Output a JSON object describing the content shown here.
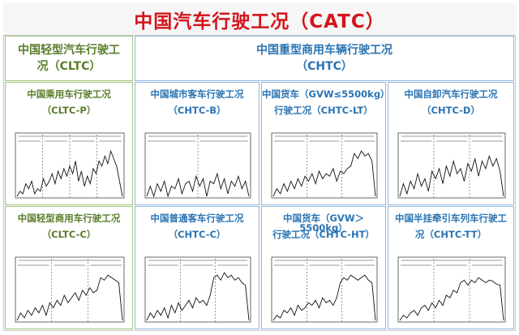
{
  "title": "中国汽车行驶工况（CATC）",
  "sections": {
    "light": {
      "line1": "中国轻型汽车行驶工",
      "line2": "况（CLTC）"
    },
    "heavy": {
      "line1": "中国重型商用车辆行驶工况",
      "line2": "（CHTC）"
    }
  },
  "colors": {
    "title_red": "#d3141c",
    "green": "#5a7d2b",
    "blue": "#2a74b3",
    "green_border": "#9fc47a",
    "blue_border": "#8fb7df"
  },
  "panels": [
    {
      "name": "cltc-p",
      "line1": "中国乘用车行驶工况",
      "line2": "（CLTC-P）",
      "theme": "green",
      "phases": 4,
      "speeds": [
        0,
        0.1,
        0.05,
        0.25,
        0.15,
        0.3,
        0.05,
        0.15,
        0.1,
        0.35,
        0.2,
        0.3,
        0.45,
        0.25,
        0.5,
        0.35,
        0.55,
        0.4,
        0.6,
        0.45,
        0.7,
        0.3,
        0.5,
        0.2,
        0.4,
        0.25,
        0.55,
        0.45,
        0.7,
        0.6,
        0.8,
        0.65,
        0.9,
        0.75,
        0.6,
        0.3,
        0
      ]
    },
    {
      "name": "chtc-b",
      "line1": "中国城市客车行驶工况",
      "line2": "（CHTC-B）",
      "theme": "blue",
      "phases": 2,
      "speeds": [
        0,
        0.2,
        0,
        0.25,
        0.1,
        0.3,
        0,
        0.2,
        0.15,
        0.35,
        0.05,
        0.25,
        0.3,
        0.1,
        0.4,
        0.2,
        0.35,
        0,
        0.3,
        0.25,
        0.45,
        0.15,
        0.35,
        0.05,
        0.3,
        0.2,
        0.4,
        0.15,
        0.3,
        0
      ]
    },
    {
      "name": "chtc-lt",
      "line1": "中国货车（GVW≤5500kg）",
      "line2": "行驶工况（CHTC-LT）",
      "theme": "blue",
      "phases": 3,
      "speeds": [
        0,
        0.15,
        0.05,
        0.25,
        0.1,
        0.3,
        0.15,
        0.35,
        0.2,
        0.4,
        0.3,
        0.45,
        0.25,
        0.5,
        0.35,
        0.45,
        0.4,
        0.55,
        0.3,
        0.5,
        0.45,
        0.55,
        0.6,
        0.85,
        0.75,
        0.9,
        0.8,
        0.85,
        0.7,
        0
      ]
    },
    {
      "name": "chtc-d",
      "line1": "中国自卸汽车行驶工况",
      "line2": "（CHTC-D）",
      "theme": "blue",
      "phases": 3,
      "speeds": [
        0,
        0.25,
        0.05,
        0.3,
        0.15,
        0.45,
        0.2,
        0.35,
        0.1,
        0.5,
        0.35,
        0.55,
        0.25,
        0.6,
        0.4,
        0.7,
        0.45,
        0.55,
        0.3,
        0.65,
        0.5,
        0.75,
        0.4,
        0.7,
        0.55,
        0.8,
        0.6,
        0.75,
        0.5,
        0
      ]
    },
    {
      "name": "cltc-c",
      "line1": "中国轻型商用车行驶工况",
      "line2": "（CLTC-C）",
      "theme": "green",
      "phases": 3,
      "speeds": [
        0,
        0.15,
        0.05,
        0.2,
        0.1,
        0.25,
        0.15,
        0.3,
        0.1,
        0.35,
        0.25,
        0.4,
        0.3,
        0.5,
        0.35,
        0.45,
        0.55,
        0.4,
        0.6,
        0.5,
        0.65,
        0.55,
        0.6,
        0.85,
        0.8,
        0.9,
        0.85,
        0.8,
        0.75,
        0
      ]
    },
    {
      "name": "chtc-c",
      "line1": "中国普通客车行驶工况",
      "line2": "（CHTC-C）",
      "theme": "blue",
      "phases": 3,
      "speeds": [
        0,
        0.15,
        0.05,
        0.2,
        0.1,
        0.25,
        0.05,
        0.3,
        0.15,
        0.35,
        0.2,
        0.3,
        0.4,
        0.25,
        0.45,
        0.35,
        0.4,
        0.3,
        0.5,
        0.85,
        0.9,
        0.8,
        0.95,
        0.85,
        0.9,
        0.8,
        0.85,
        0.75,
        0.7,
        0
      ]
    },
    {
      "name": "chtc-ht",
      "line1": "中国货车（GVW＞5500kg）",
      "line2": "行驶工况（CHTC-HT）",
      "theme": "blue",
      "phases": 3,
      "speeds": [
        0,
        0.1,
        0.05,
        0.2,
        0.15,
        0.25,
        0.1,
        0.3,
        0.2,
        0.25,
        0.35,
        0.3,
        0.4,
        0.25,
        0.45,
        0.35,
        0.4,
        0.3,
        0.45,
        0.75,
        0.85,
        0.8,
        0.9,
        0.85,
        0.8,
        0.85,
        0.9,
        0.8,
        0.75,
        0
      ]
    },
    {
      "name": "chtc-tt",
      "line1": "中国半挂牵引车列车行驶工",
      "line2": "况（CHTC-TT）",
      "theme": "blue",
      "phases": 3,
      "speeds": [
        0,
        0.1,
        0.05,
        0.15,
        0.2,
        0.1,
        0.25,
        0.3,
        0.2,
        0.35,
        0.25,
        0.4,
        0.3,
        0.5,
        0.45,
        0.6,
        0.55,
        0.75,
        0.8,
        0.7,
        0.8,
        0.75,
        0.85,
        0.8,
        0.75,
        0.8,
        0.78,
        0.72,
        0.7,
        0
      ]
    }
  ]
}
